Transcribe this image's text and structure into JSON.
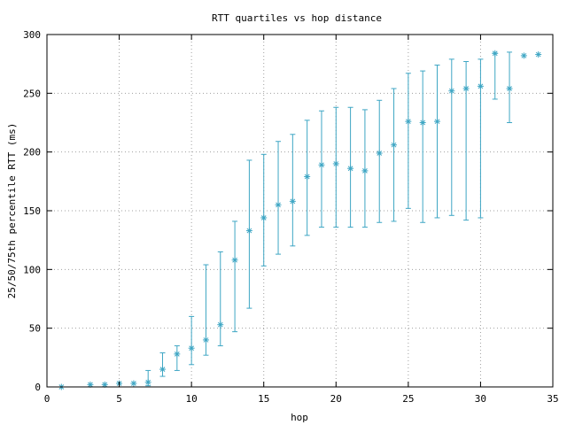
{
  "chart_data": {
    "type": "scatter",
    "title": "RTT quartiles vs hop distance",
    "xlabel": "hop",
    "ylabel": "25/50/75th percentile RTT (ms)",
    "xlim": [
      0,
      35
    ],
    "ylim": [
      0,
      300
    ],
    "xticks": [
      0,
      5,
      10,
      15,
      20,
      25,
      30,
      35
    ],
    "yticks": [
      0,
      50,
      100,
      150,
      200,
      250,
      300
    ],
    "grid": true,
    "color": "#3ea6c4",
    "series": [
      {
        "points": [
          {
            "x": 1,
            "median": 0,
            "low": 0,
            "high": 0
          },
          {
            "x": 3,
            "median": 2,
            "low": 2,
            "high": 2
          },
          {
            "x": 4,
            "median": 2,
            "low": 2,
            "high": 2
          },
          {
            "x": 5,
            "median": 3,
            "low": 3,
            "high": 3
          },
          {
            "x": 6,
            "median": 3,
            "low": 3,
            "high": 3
          },
          {
            "x": 7,
            "median": 4,
            "low": 1,
            "high": 14
          },
          {
            "x": 8,
            "median": 15,
            "low": 9,
            "high": 29
          },
          {
            "x": 9,
            "median": 28,
            "low": 14,
            "high": 35
          },
          {
            "x": 10,
            "median": 33,
            "low": 19,
            "high": 60
          },
          {
            "x": 11,
            "median": 40,
            "low": 27,
            "high": 104
          },
          {
            "x": 12,
            "median": 53,
            "low": 35,
            "high": 115
          },
          {
            "x": 13,
            "median": 108,
            "low": 47,
            "high": 141
          },
          {
            "x": 14,
            "median": 133,
            "low": 67,
            "high": 193
          },
          {
            "x": 15,
            "median": 144,
            "low": 103,
            "high": 198
          },
          {
            "x": 16,
            "median": 155,
            "low": 113,
            "high": 209
          },
          {
            "x": 17,
            "median": 158,
            "low": 120,
            "high": 215
          },
          {
            "x": 18,
            "median": 179,
            "low": 129,
            "high": 227
          },
          {
            "x": 19,
            "median": 189,
            "low": 136,
            "high": 235
          },
          {
            "x": 20,
            "median": 190,
            "low": 136,
            "high": 238
          },
          {
            "x": 21,
            "median": 186,
            "low": 136,
            "high": 238
          },
          {
            "x": 22,
            "median": 184,
            "low": 136,
            "high": 236
          },
          {
            "x": 23,
            "median": 199,
            "low": 140,
            "high": 244
          },
          {
            "x": 24,
            "median": 206,
            "low": 141,
            "high": 254
          },
          {
            "x": 25,
            "median": 226,
            "low": 152,
            "high": 267
          },
          {
            "x": 26,
            "median": 225,
            "low": 140,
            "high": 269
          },
          {
            "x": 27,
            "median": 226,
            "low": 144,
            "high": 274
          },
          {
            "x": 28,
            "median": 252,
            "low": 146,
            "high": 279
          },
          {
            "x": 29,
            "median": 254,
            "low": 142,
            "high": 277
          },
          {
            "x": 30,
            "median": 256,
            "low": 144,
            "high": 279
          },
          {
            "x": 31,
            "median": 284,
            "low": 245,
            "high": 284
          },
          {
            "x": 32,
            "median": 254,
            "low": 225,
            "high": 285
          },
          {
            "x": 33,
            "median": 282,
            "low": 282,
            "high": 282
          },
          {
            "x": 34,
            "median": 283,
            "low": 283,
            "high": 283
          }
        ]
      }
    ]
  }
}
